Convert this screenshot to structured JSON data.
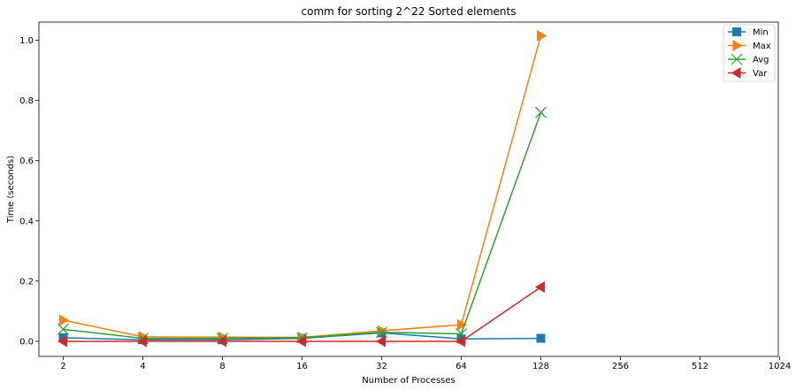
{
  "chart_data": {
    "type": "line",
    "title": "comm for sorting 2^22 Sorted elements",
    "xlabel": "Number of Processes",
    "ylabel": "Time (seconds)",
    "x": [
      2,
      4,
      8,
      16,
      32,
      64,
      128
    ],
    "xticks": [
      "2",
      "4",
      "8",
      "16",
      "32",
      "64",
      "128",
      "256",
      "512",
      "1024"
    ],
    "yticks": [
      "0.0",
      "0.2",
      "0.4",
      "0.6",
      "0.8",
      "1.0"
    ],
    "ylim": [
      -0.05,
      1.06
    ],
    "x_scale": "log2",
    "grid": false,
    "legend_position": "top-right",
    "series": [
      {
        "name": "Min",
        "color": "#1f77b4",
        "marker": "square",
        "values": [
          0.012,
          0.005,
          0.005,
          0.01,
          0.028,
          0.008,
          0.01
        ]
      },
      {
        "name": "Max",
        "color": "#ff7f0e",
        "marker": "triangle-right",
        "values": [
          0.07,
          0.015,
          0.014,
          0.013,
          0.035,
          0.055,
          1.015
        ]
      },
      {
        "name": "Avg",
        "color": "#2ca02c",
        "marker": "x",
        "values": [
          0.04,
          0.01,
          0.01,
          0.012,
          0.03,
          0.025,
          0.76
        ]
      },
      {
        "name": "Var",
        "color": "#d62728",
        "marker": "triangle-left",
        "values": [
          0.0,
          0.0,
          0.0,
          0.0,
          0.0,
          0.0,
          0.18
        ]
      }
    ]
  }
}
